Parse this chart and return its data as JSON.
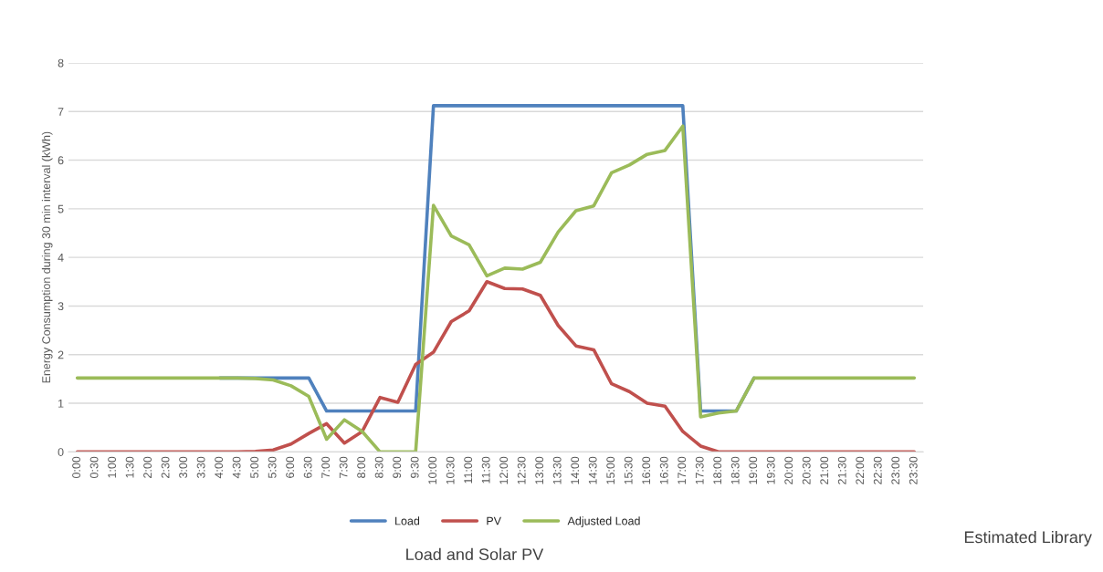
{
  "chart_data": {
    "type": "line",
    "title": "Load and Solar PV",
    "ylabel": "Energy Consumption during 30 min interval (kWh)",
    "annotations": [
      "Estimated Library"
    ],
    "categories": [
      "0:00",
      "0:30",
      "1:00",
      "1:30",
      "2:00",
      "2:30",
      "3:00",
      "3:30",
      "4:00",
      "4:30",
      "5:00",
      "5:30",
      "6:00",
      "6:30",
      "7:00",
      "7:30",
      "8:00",
      "8:30",
      "9:00",
      "9:30",
      "10:00",
      "10:30",
      "11:00",
      "11:30",
      "12:00",
      "12:30",
      "13:00",
      "13:30",
      "14:00",
      "14:30",
      "15:00",
      "15:30",
      "16:00",
      "16:30",
      "17:00",
      "17:30",
      "18:00",
      "18:30",
      "19:00",
      "19:30",
      "20:00",
      "20:30",
      "21:00",
      "21:30",
      "22:00",
      "22:30",
      "23:00",
      "23:30"
    ],
    "series": [
      {
        "name": "Load",
        "color": "#4f81bd",
        "values": [
          null,
          null,
          null,
          null,
          null,
          null,
          null,
          null,
          1.52,
          1.52,
          1.52,
          1.52,
          1.52,
          1.52,
          0.84,
          0.84,
          0.84,
          0.84,
          0.84,
          0.84,
          7.12,
          7.12,
          7.12,
          7.12,
          7.12,
          7.12,
          7.12,
          7.12,
          7.12,
          7.12,
          7.12,
          7.12,
          7.12,
          7.12,
          7.12,
          0.84,
          0.84,
          0.84,
          1.52,
          null,
          null,
          null,
          null,
          null,
          null,
          null,
          null,
          null
        ]
      },
      {
        "name": "PV",
        "color": "#c0504d",
        "values": [
          0,
          0,
          0,
          0,
          0,
          0,
          0,
          0,
          0,
          0,
          0.01,
          0.04,
          0.16,
          0.38,
          0.58,
          0.18,
          0.42,
          1.12,
          1.02,
          1.8,
          2.05,
          2.68,
          2.9,
          3.5,
          3.36,
          3.35,
          3.22,
          2.6,
          2.18,
          2.1,
          1.4,
          1.24,
          1.0,
          0.94,
          0.42,
          0.12,
          0,
          0,
          0,
          0,
          0,
          0,
          0,
          0,
          0,
          0,
          0,
          0
        ]
      },
      {
        "name": "Adjusted Load",
        "color": "#9bbb59",
        "values": [
          1.52,
          1.52,
          1.52,
          1.52,
          1.52,
          1.52,
          1.52,
          1.52,
          1.52,
          1.52,
          1.51,
          1.48,
          1.36,
          1.14,
          0.26,
          0.66,
          0.42,
          0,
          0,
          0,
          5.07,
          4.44,
          4.26,
          3.62,
          3.78,
          3.76,
          3.9,
          4.52,
          4.96,
          5.06,
          5.74,
          5.9,
          6.12,
          6.2,
          6.7,
          0.72,
          0.8,
          0.84,
          1.52,
          1.52,
          1.52,
          1.52,
          1.52,
          1.52,
          1.52,
          1.52,
          1.52,
          1.52
        ]
      }
    ],
    "ylim": [
      0,
      8
    ],
    "yticks": [
      0,
      1,
      2,
      3,
      4,
      5,
      6,
      7,
      8
    ],
    "grid": "y",
    "legend": "bottom",
    "marker": "none",
    "line_style": "solid"
  }
}
